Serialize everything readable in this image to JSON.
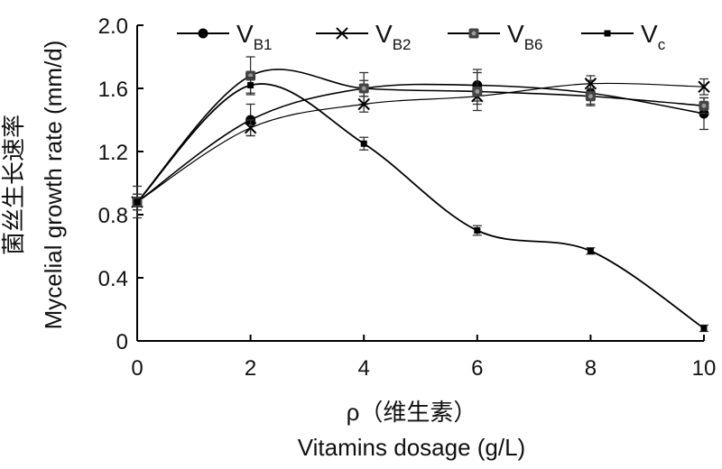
{
  "chart_data": {
    "type": "line",
    "title": "",
    "xlabel_cn": "ρ（维生素）",
    "xlabel": "Vitamins dosage (g/L)",
    "ylabel_cn": "菌丝生长速率",
    "ylabel": "Mycelial growth rate (mm/d)",
    "xlim": [
      0,
      10
    ],
    "ylim": [
      0,
      2.0
    ],
    "x_ticks": [
      "0",
      "2",
      "4",
      "6",
      "8",
      "10"
    ],
    "y_ticks": [
      "0",
      "0.4",
      "0.8",
      "1.2",
      "1.6",
      "2.0"
    ],
    "grid": false,
    "legend_position": "top",
    "x": [
      0,
      2,
      4,
      6,
      8,
      10
    ],
    "series": [
      {
        "name": "V",
        "sub": "B1",
        "marker": "circle",
        "values": [
          0.88,
          1.4,
          1.6,
          1.62,
          1.57,
          1.44
        ],
        "errors": [
          0.1,
          0.1,
          0.1,
          0.1,
          0.08,
          0.1
        ]
      },
      {
        "name": "V",
        "sub": "B2",
        "marker": "x",
        "values": [
          0.88,
          1.35,
          1.5,
          1.55,
          1.63,
          1.61
        ],
        "errors": [
          0.05,
          0.05,
          0.05,
          0.05,
          0.05,
          0.05
        ]
      },
      {
        "name": "V",
        "sub": "B6",
        "marker": "dot-square",
        "values": [
          0.88,
          1.68,
          1.6,
          1.58,
          1.55,
          1.49
        ],
        "errors": [
          0.05,
          0.12,
          0.05,
          0.12,
          0.05,
          0.05
        ]
      },
      {
        "name": "V",
        "sub": "c",
        "marker": "small-square",
        "values": [
          0.88,
          1.62,
          1.25,
          0.7,
          0.57,
          0.08
        ],
        "errors": [
          0.03,
          0.05,
          0.04,
          0.03,
          0.02,
          0.02
        ]
      }
    ]
  }
}
